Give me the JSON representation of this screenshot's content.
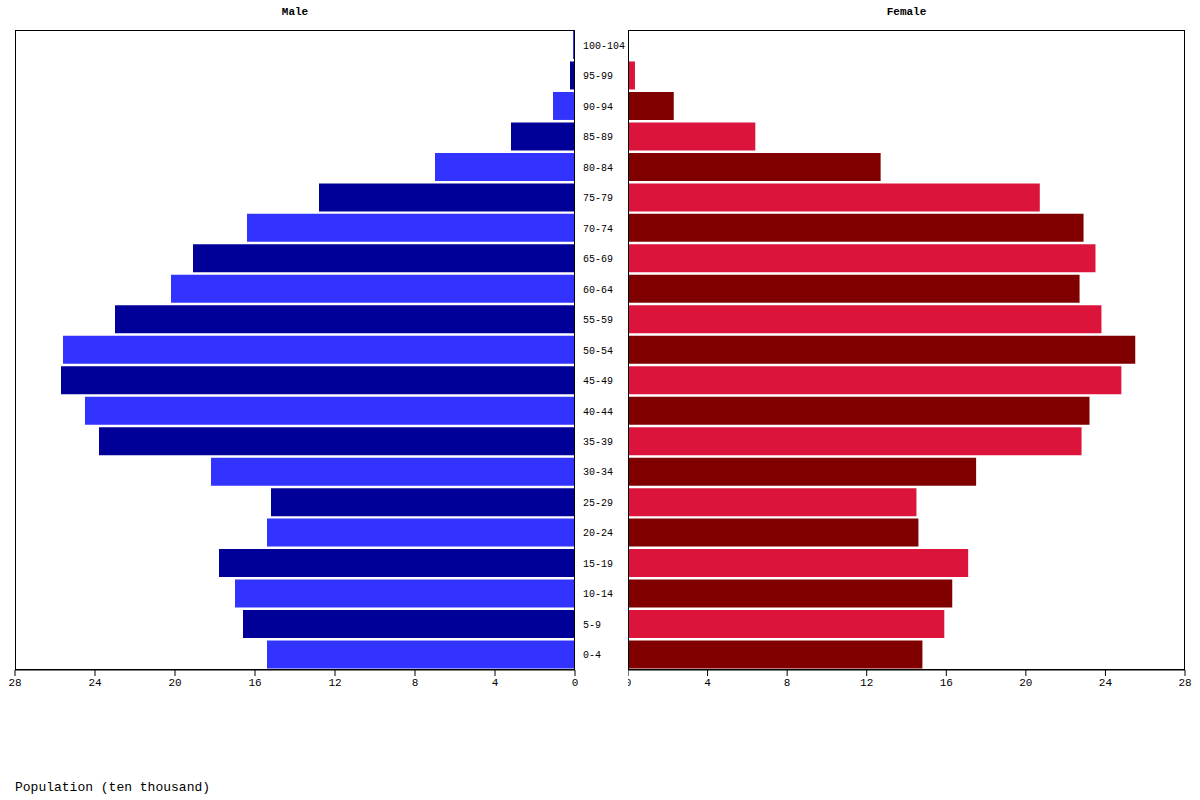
{
  "chart_data": {
    "type": "bar",
    "orientation": "horizontal",
    "x_label": "Population (ten thousand)",
    "categories": [
      "0-4",
      "5-9",
      "10-14",
      "15-19",
      "20-24",
      "25-29",
      "30-34",
      "35-39",
      "40-44",
      "45-49",
      "50-54",
      "55-59",
      "60-64",
      "65-69",
      "70-74",
      "75-79",
      "80-84",
      "85-89",
      "90-94",
      "95-99",
      "100-104"
    ],
    "series": [
      {
        "name": "Male",
        "colors": [
          "#3333ff",
          "#000099",
          "#3333ff",
          "#000099",
          "#3333ff",
          "#000099",
          "#3333ff",
          "#000099",
          "#3333ff",
          "#000099",
          "#3333ff",
          "#000099",
          "#3333ff",
          "#000099",
          "#3333ff",
          "#000099",
          "#3333ff",
          "#000099",
          "#3333ff",
          "#000099",
          "#3333ff"
        ],
        "values": [
          15.4,
          16.6,
          17.0,
          17.8,
          15.4,
          15.2,
          18.2,
          23.8,
          24.5,
          25.7,
          25.6,
          23.0,
          20.2,
          19.1,
          16.4,
          12.8,
          7.0,
          3.2,
          1.1,
          0.25,
          0.1
        ]
      },
      {
        "name": "Female",
        "colors": [
          "#800000",
          "#dc143c",
          "#800000",
          "#dc143c",
          "#800000",
          "#dc143c",
          "#800000",
          "#dc143c",
          "#800000",
          "#dc143c",
          "#800000",
          "#dc143c",
          "#800000",
          "#dc143c",
          "#800000",
          "#dc143c",
          "#800000",
          "#dc143c",
          "#800000",
          "#dc143c",
          "#800000"
        ],
        "values": [
          14.8,
          15.9,
          16.3,
          17.1,
          14.6,
          14.5,
          17.5,
          22.8,
          23.2,
          24.8,
          25.5,
          23.8,
          22.7,
          23.5,
          22.9,
          20.7,
          12.7,
          6.4,
          2.3,
          0.35,
          0.05
        ]
      }
    ],
    "xlim": [
      0,
      28
    ],
    "xticks": [
      0,
      4,
      8,
      12,
      16,
      20,
      24,
      28
    ],
    "grid": false
  }
}
